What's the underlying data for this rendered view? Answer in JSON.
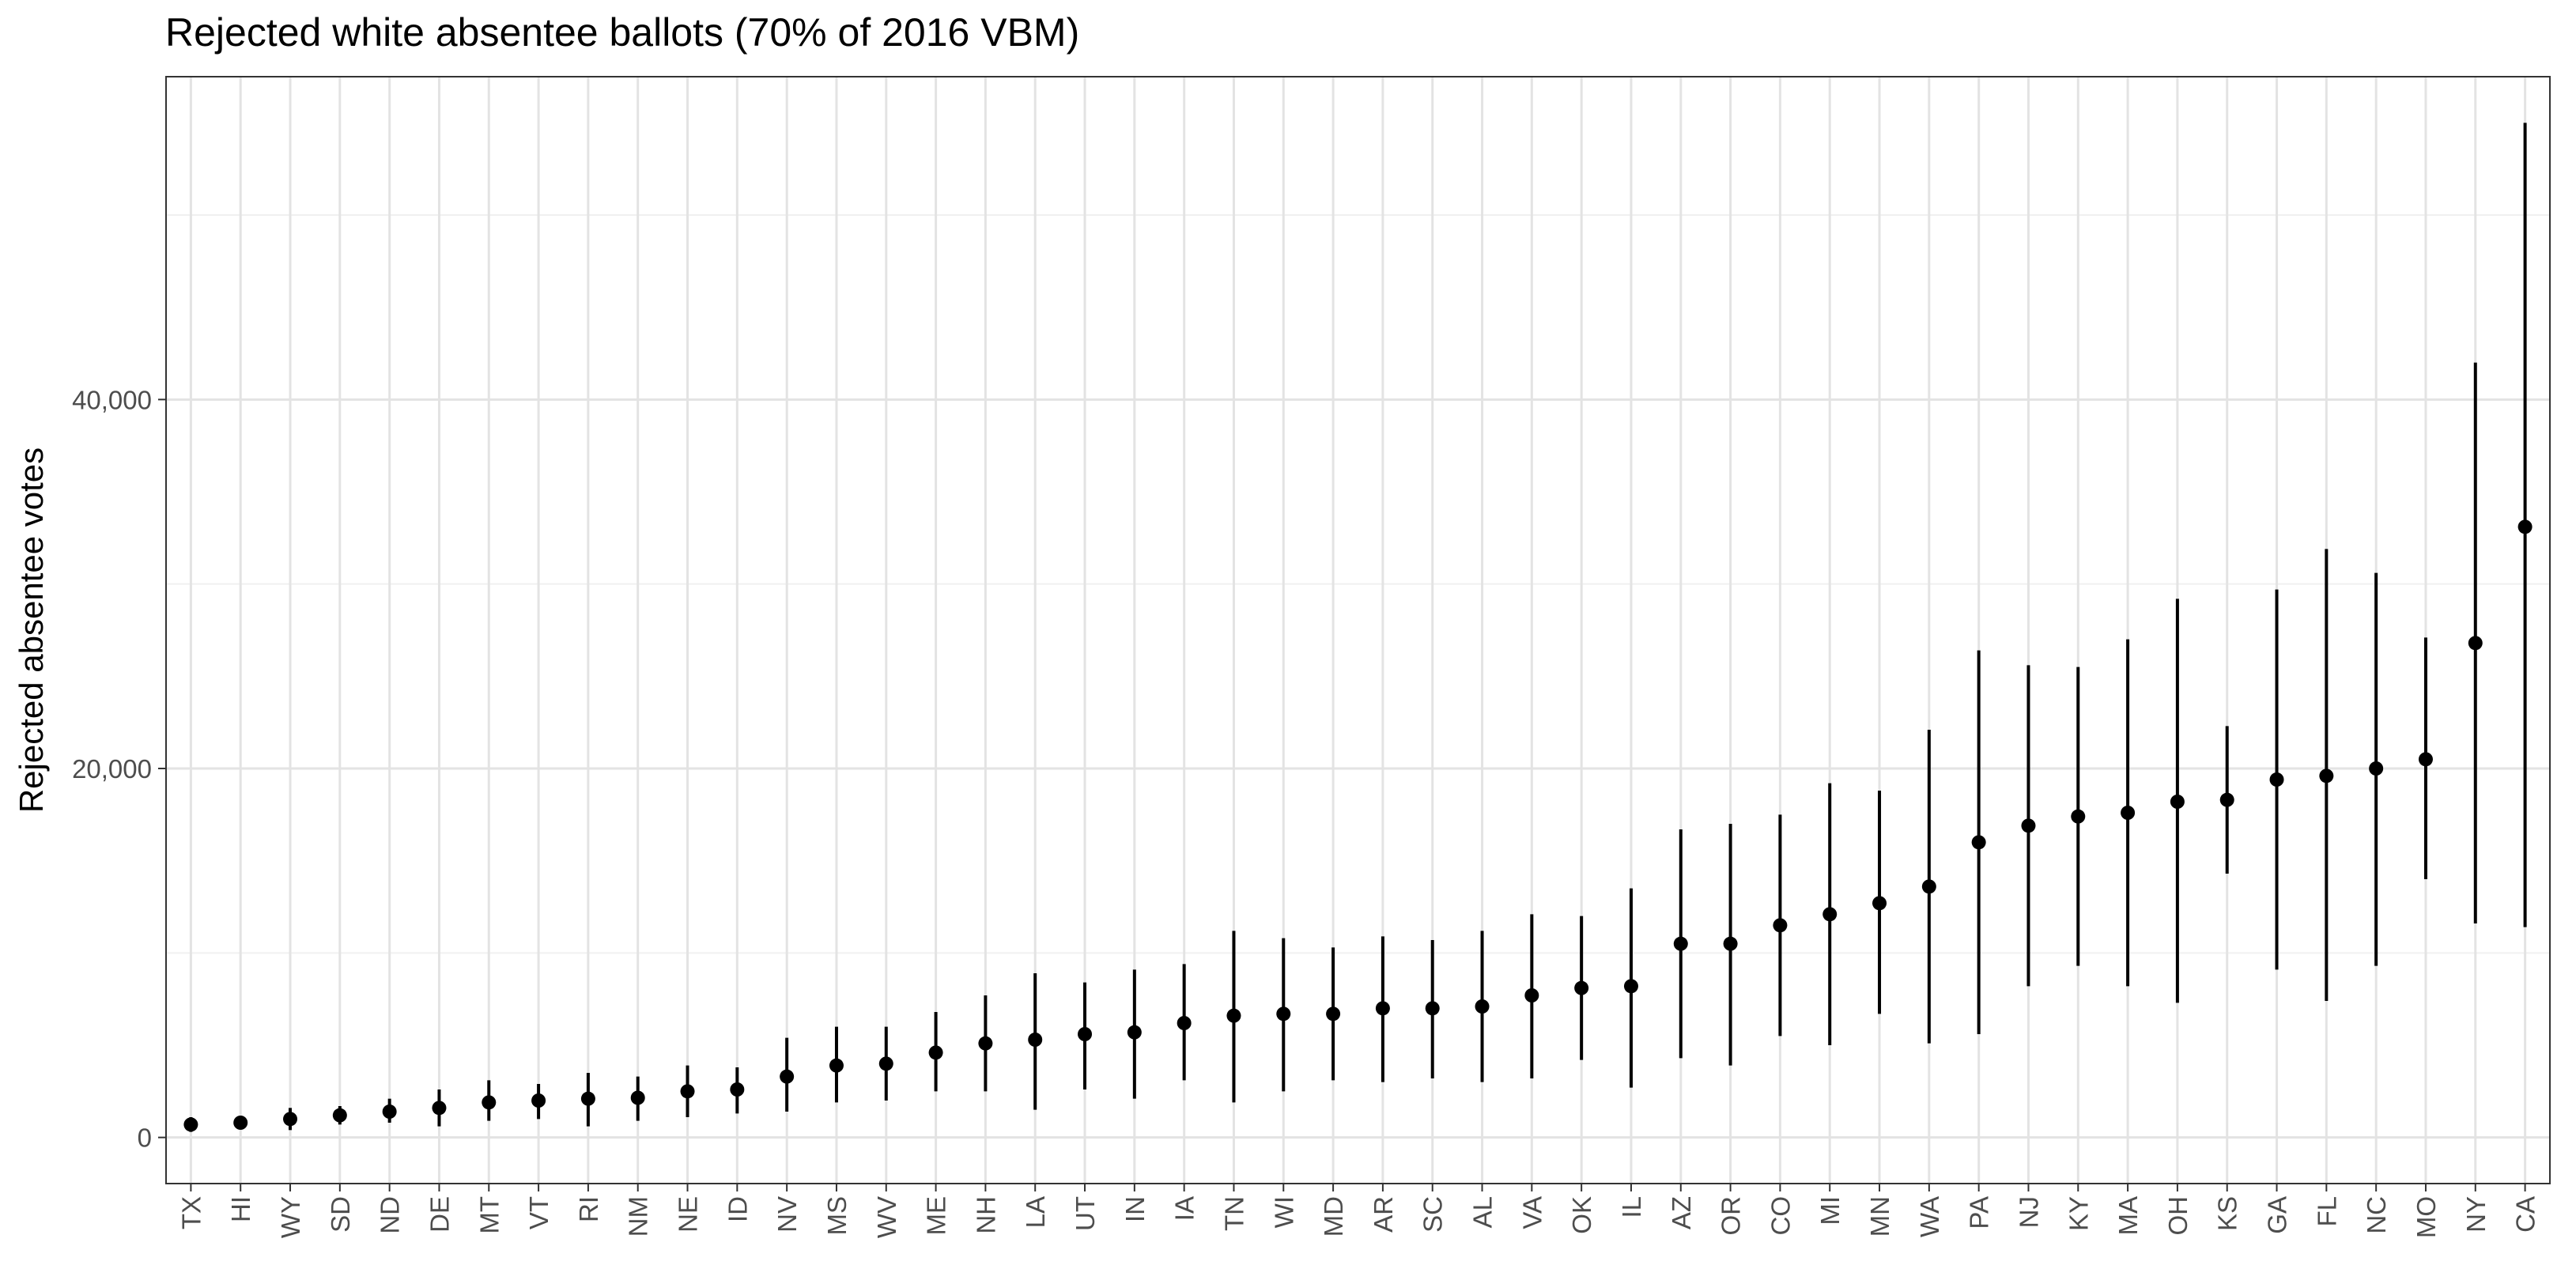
{
  "chart_data": {
    "type": "errorbar",
    "title": "Rejected white absentee ballots (70% of 2016 VBM)",
    "xlabel": "",
    "ylabel": "Rejected absentee votes",
    "ylim": [
      -2500,
      57500
    ],
    "yticks": [
      0,
      20000,
      40000
    ],
    "ytick_labels": [
      "0",
      "20,000",
      "40,000"
    ],
    "grid": true,
    "categories": [
      "TX",
      "HI",
      "WY",
      "SD",
      "ND",
      "DE",
      "MT",
      "VT",
      "RI",
      "NM",
      "NE",
      "ID",
      "NV",
      "MS",
      "WV",
      "ME",
      "NH",
      "LA",
      "UT",
      "IN",
      "IA",
      "TN",
      "WI",
      "MD",
      "AR",
      "SC",
      "AL",
      "VA",
      "OK",
      "IL",
      "AZ",
      "OR",
      "CO",
      "MI",
      "MN",
      "WA",
      "PA",
      "NJ",
      "KY",
      "MA",
      "OH",
      "KS",
      "GA",
      "FL",
      "NC",
      "MO",
      "NY",
      "CA"
    ],
    "estimate": [
      700,
      800,
      1000,
      1200,
      1400,
      1600,
      1900,
      2000,
      2100,
      2150,
      2500,
      2600,
      3300,
      3900,
      4000,
      4600,
      5100,
      5300,
      5600,
      5700,
      6200,
      6600,
      6700,
      6700,
      7000,
      7000,
      7100,
      7700,
      8100,
      8200,
      10500,
      10500,
      11500,
      12100,
      12700,
      13600,
      16000,
      16900,
      17400,
      17600,
      18200,
      18300,
      19400,
      19600,
      20000,
      20500,
      26800,
      33100
    ],
    "lower": [
      300,
      600,
      400,
      700,
      800,
      600,
      900,
      1000,
      600,
      900,
      1100,
      1300,
      1400,
      1900,
      2000,
      2500,
      2500,
      1500,
      2600,
      2100,
      3100,
      1900,
      2500,
      3100,
      3000,
      3200,
      3000,
      3200,
      4200,
      2700,
      4300,
      3900,
      5500,
      5000,
      6700,
      5100,
      5600,
      8200,
      9300,
      8200,
      7300,
      14300,
      9100,
      7400,
      9300,
      14000,
      11600,
      11400
    ],
    "upper": [
      1100,
      1000,
      1600,
      1700,
      2100,
      2600,
      3100,
      2900,
      3500,
      3300,
      3900,
      3800,
      5400,
      6000,
      6000,
      6800,
      7700,
      8900,
      8400,
      9100,
      9400,
      11200,
      10800,
      10300,
      10900,
      10700,
      11200,
      12100,
      12000,
      13500,
      16700,
      17000,
      17500,
      19200,
      18800,
      22100,
      26400,
      25600,
      25500,
      27000,
      29200,
      22300,
      29700,
      31900,
      30600,
      27100,
      42000,
      55000
    ]
  }
}
